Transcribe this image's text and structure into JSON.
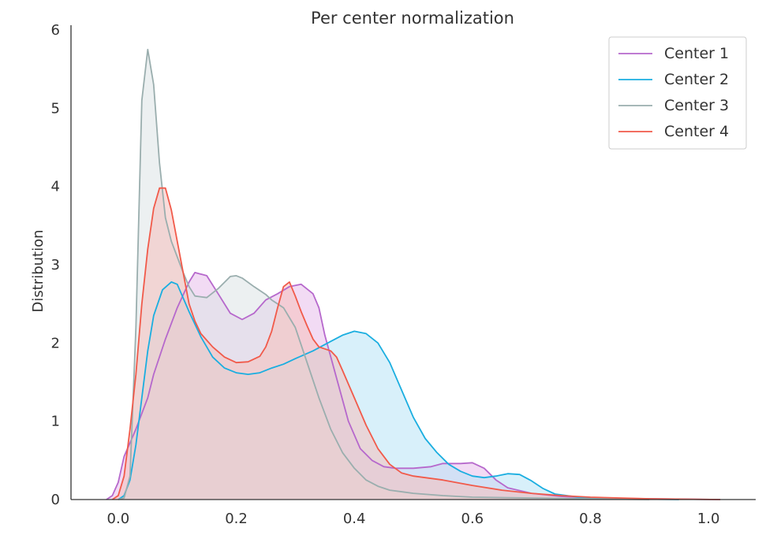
{
  "chart_data": {
    "type": "area",
    "title": "Per center normalization",
    "xlabel": "",
    "ylabel": "Distribution",
    "xlim": [
      -0.08,
      1.08
    ],
    "ylim": [
      0,
      6.0
    ],
    "x_ticks": [
      0.0,
      0.2,
      0.4,
      0.6,
      0.8,
      1.0
    ],
    "x_tick_labels": [
      "0.0",
      "0.2",
      "0.4",
      "0.6",
      "0.8",
      "1.0"
    ],
    "y_ticks": [
      0,
      1,
      2,
      3,
      4,
      5,
      6
    ],
    "y_tick_labels": [
      "0",
      "1",
      "2",
      "3",
      "4",
      "5",
      "6"
    ],
    "grid": false,
    "legend_position": "top-right",
    "series": [
      {
        "name": "Center 1",
        "color": "#b668cc",
        "fill": "#e8bdeb",
        "points": [
          [
            -0.02,
            0.0
          ],
          [
            -0.01,
            0.05
          ],
          [
            0.0,
            0.22
          ],
          [
            0.01,
            0.55
          ],
          [
            0.03,
            0.9
          ],
          [
            0.05,
            1.3
          ],
          [
            0.06,
            1.6
          ],
          [
            0.08,
            2.05
          ],
          [
            0.1,
            2.45
          ],
          [
            0.12,
            2.78
          ],
          [
            0.13,
            2.9
          ],
          [
            0.15,
            2.86
          ],
          [
            0.17,
            2.62
          ],
          [
            0.19,
            2.38
          ],
          [
            0.21,
            2.3
          ],
          [
            0.23,
            2.38
          ],
          [
            0.25,
            2.55
          ],
          [
            0.27,
            2.63
          ],
          [
            0.29,
            2.72
          ],
          [
            0.31,
            2.75
          ],
          [
            0.33,
            2.63
          ],
          [
            0.34,
            2.45
          ],
          [
            0.35,
            2.1
          ],
          [
            0.37,
            1.55
          ],
          [
            0.39,
            1.0
          ],
          [
            0.41,
            0.65
          ],
          [
            0.43,
            0.5
          ],
          [
            0.45,
            0.42
          ],
          [
            0.47,
            0.4
          ],
          [
            0.5,
            0.4
          ],
          [
            0.53,
            0.42
          ],
          [
            0.55,
            0.46
          ],
          [
            0.58,
            0.46
          ],
          [
            0.6,
            0.47
          ],
          [
            0.62,
            0.4
          ],
          [
            0.64,
            0.25
          ],
          [
            0.66,
            0.15
          ],
          [
            0.7,
            0.08
          ],
          [
            0.75,
            0.04
          ],
          [
            0.8,
            0.02
          ],
          [
            0.9,
            0.01
          ],
          [
            1.02,
            0.0
          ]
        ]
      },
      {
        "name": "Center 2",
        "color": "#1aaee0",
        "fill": "#b8e4f5",
        "points": [
          [
            0.0,
            0.0
          ],
          [
            0.01,
            0.05
          ],
          [
            0.02,
            0.25
          ],
          [
            0.03,
            0.7
          ],
          [
            0.04,
            1.3
          ],
          [
            0.05,
            1.9
          ],
          [
            0.06,
            2.35
          ],
          [
            0.075,
            2.68
          ],
          [
            0.09,
            2.78
          ],
          [
            0.1,
            2.75
          ],
          [
            0.12,
            2.4
          ],
          [
            0.14,
            2.08
          ],
          [
            0.16,
            1.82
          ],
          [
            0.18,
            1.68
          ],
          [
            0.2,
            1.62
          ],
          [
            0.22,
            1.6
          ],
          [
            0.24,
            1.62
          ],
          [
            0.26,
            1.68
          ],
          [
            0.28,
            1.73
          ],
          [
            0.3,
            1.8
          ],
          [
            0.33,
            1.9
          ],
          [
            0.36,
            2.02
          ],
          [
            0.38,
            2.1
          ],
          [
            0.4,
            2.15
          ],
          [
            0.42,
            2.12
          ],
          [
            0.44,
            2.0
          ],
          [
            0.46,
            1.75
          ],
          [
            0.48,
            1.4
          ],
          [
            0.5,
            1.05
          ],
          [
            0.52,
            0.78
          ],
          [
            0.54,
            0.6
          ],
          [
            0.56,
            0.45
          ],
          [
            0.58,
            0.36
          ],
          [
            0.6,
            0.3
          ],
          [
            0.62,
            0.28
          ],
          [
            0.64,
            0.3
          ],
          [
            0.66,
            0.33
          ],
          [
            0.68,
            0.32
          ],
          [
            0.7,
            0.24
          ],
          [
            0.72,
            0.14
          ],
          [
            0.74,
            0.07
          ],
          [
            0.78,
            0.03
          ],
          [
            0.85,
            0.01
          ],
          [
            0.95,
            0.0
          ]
        ]
      },
      {
        "name": "Center 3",
        "color": "#9aaeae",
        "fill": "#dde3e6",
        "points": [
          [
            0.0,
            0.0
          ],
          [
            0.01,
            0.02
          ],
          [
            0.02,
            0.3
          ],
          [
            0.03,
            2.2
          ],
          [
            0.04,
            5.1
          ],
          [
            0.05,
            5.75
          ],
          [
            0.06,
            5.3
          ],
          [
            0.07,
            4.3
          ],
          [
            0.08,
            3.6
          ],
          [
            0.09,
            3.3
          ],
          [
            0.1,
            3.1
          ],
          [
            0.11,
            2.9
          ],
          [
            0.12,
            2.72
          ],
          [
            0.13,
            2.6
          ],
          [
            0.15,
            2.58
          ],
          [
            0.17,
            2.7
          ],
          [
            0.19,
            2.85
          ],
          [
            0.2,
            2.86
          ],
          [
            0.21,
            2.83
          ],
          [
            0.23,
            2.72
          ],
          [
            0.25,
            2.62
          ],
          [
            0.26,
            2.55
          ],
          [
            0.28,
            2.45
          ],
          [
            0.3,
            2.2
          ],
          [
            0.32,
            1.75
          ],
          [
            0.34,
            1.3
          ],
          [
            0.36,
            0.9
          ],
          [
            0.38,
            0.6
          ],
          [
            0.4,
            0.4
          ],
          [
            0.42,
            0.25
          ],
          [
            0.44,
            0.17
          ],
          [
            0.46,
            0.12
          ],
          [
            0.5,
            0.08
          ],
          [
            0.55,
            0.05
          ],
          [
            0.6,
            0.03
          ],
          [
            0.7,
            0.02
          ],
          [
            0.8,
            0.01
          ],
          [
            0.9,
            0.0
          ]
        ]
      },
      {
        "name": "Center 4",
        "color": "#f15a4a",
        "fill": "#f5c0bc",
        "points": [
          [
            -0.01,
            0.0
          ],
          [
            0.0,
            0.05
          ],
          [
            0.01,
            0.3
          ],
          [
            0.02,
            0.9
          ],
          [
            0.03,
            1.6
          ],
          [
            0.04,
            2.5
          ],
          [
            0.05,
            3.2
          ],
          [
            0.06,
            3.72
          ],
          [
            0.07,
            3.98
          ],
          [
            0.08,
            3.98
          ],
          [
            0.09,
            3.7
          ],
          [
            0.1,
            3.3
          ],
          [
            0.11,
            2.9
          ],
          [
            0.12,
            2.5
          ],
          [
            0.13,
            2.28
          ],
          [
            0.14,
            2.12
          ],
          [
            0.16,
            1.95
          ],
          [
            0.18,
            1.82
          ],
          [
            0.2,
            1.75
          ],
          [
            0.22,
            1.76
          ],
          [
            0.24,
            1.83
          ],
          [
            0.25,
            1.95
          ],
          [
            0.26,
            2.15
          ],
          [
            0.27,
            2.45
          ],
          [
            0.28,
            2.72
          ],
          [
            0.29,
            2.78
          ],
          [
            0.3,
            2.6
          ],
          [
            0.31,
            2.4
          ],
          [
            0.32,
            2.22
          ],
          [
            0.33,
            2.05
          ],
          [
            0.34,
            1.95
          ],
          [
            0.36,
            1.9
          ],
          [
            0.37,
            1.82
          ],
          [
            0.38,
            1.65
          ],
          [
            0.4,
            1.3
          ],
          [
            0.42,
            0.95
          ],
          [
            0.44,
            0.65
          ],
          [
            0.46,
            0.45
          ],
          [
            0.48,
            0.34
          ],
          [
            0.5,
            0.3
          ],
          [
            0.55,
            0.25
          ],
          [
            0.6,
            0.18
          ],
          [
            0.65,
            0.12
          ],
          [
            0.7,
            0.08
          ],
          [
            0.75,
            0.05
          ],
          [
            0.8,
            0.03
          ],
          [
            0.9,
            0.01
          ],
          [
            1.02,
            0.0
          ]
        ]
      }
    ]
  }
}
